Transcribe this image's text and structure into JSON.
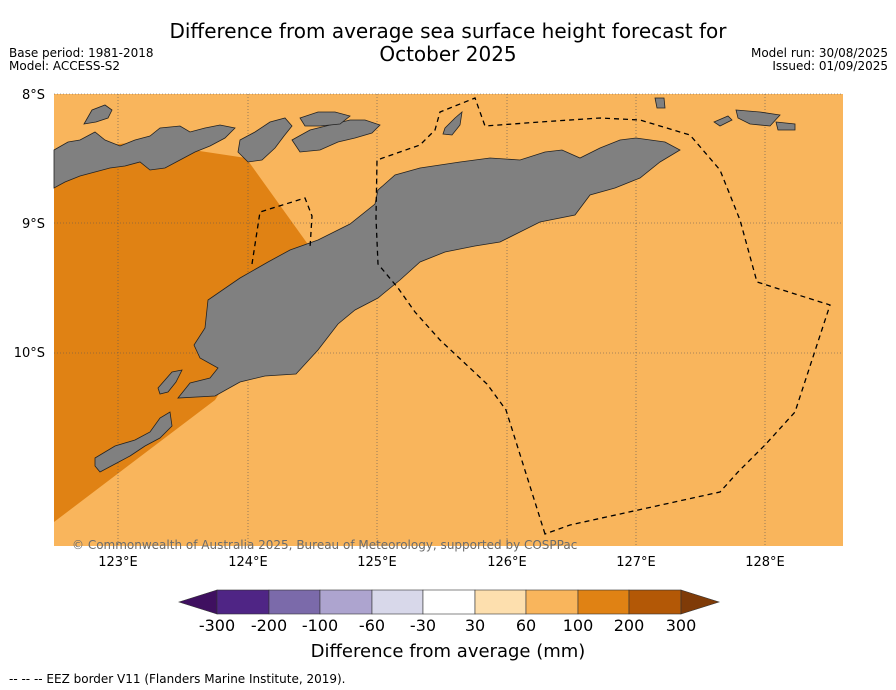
{
  "title_line1": "Difference from average sea surface height forecast for",
  "title_line2": "October 2025",
  "meta_left": [
    "Base period: 1981-2018",
    "Model: ACCESS-S2"
  ],
  "meta_right": [
    "Model run: 30/08/2025",
    "Issued: 01/09/2025"
  ],
  "copyright": "© Commonwealth of Australia 2025, Bureau of Meteorology, supported by COSPPac",
  "lat_labels": [
    "8°S",
    "9°S",
    "10°S"
  ],
  "lon_labels": [
    "123°E",
    "124°E",
    "125°E",
    "126°E",
    "127°E",
    "128°E"
  ],
  "colorbar": {
    "title": "Difference from average (mm)",
    "ticks": [
      "-300",
      "-200",
      "-100",
      "-60",
      "-30",
      "30",
      "60",
      "100",
      "200",
      "300"
    ],
    "colors": [
      "#3f1060",
      "#4f2585",
      "#7b6aaa",
      "#ada4cf",
      "#d8d8ea",
      "#ffffff",
      "#fddfae",
      "#f9b55c",
      "#e08214",
      "#b35806",
      "#7f3b08"
    ]
  },
  "legend_footnote": "--  --  -- EEZ border V11 (Flanders Marine Institute, 2019).",
  "map_colors": {
    "background_anomaly": "#f9b55c",
    "high_anomaly": "#e08214",
    "land": "#808080"
  }
}
